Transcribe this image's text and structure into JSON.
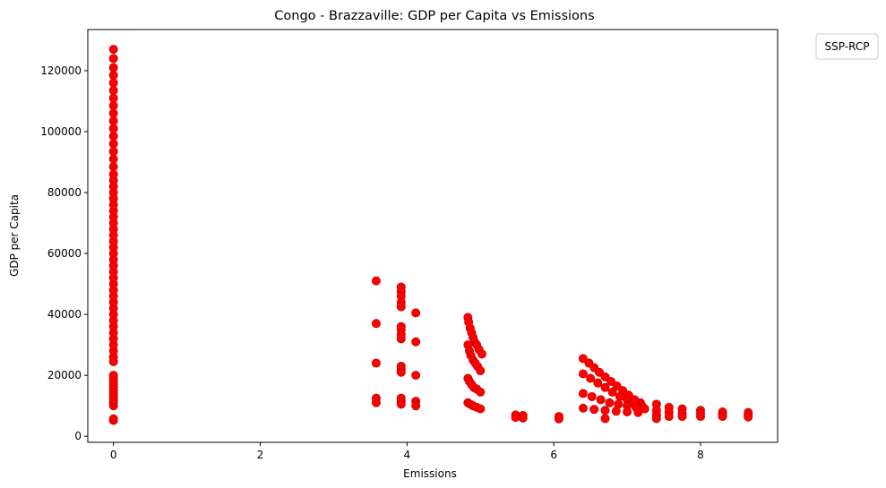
{
  "chart_data": {
    "type": "scatter",
    "title": "Congo - Brazzaville: GDP per Capita vs Emissions",
    "xlabel": "Emissions",
    "ylabel": "GDP per Capita",
    "xlim": [
      -0.35,
      9.05
    ],
    "ylim": [
      -2000,
      133500
    ],
    "xticks": [
      0,
      2,
      4,
      6,
      8
    ],
    "yticks": [
      0,
      20000,
      40000,
      60000,
      80000,
      100000,
      120000
    ],
    "grid": false,
    "legend": {
      "title": "SSP-RCP",
      "placement": "outside-top-right"
    },
    "marker_color": "#ff0000",
    "marker_edge_color": "#cc0000",
    "series": [
      {
        "values": [
          {
            "x": 0,
            "y": 5200
          },
          {
            "x": 0,
            "y": 5700
          },
          {
            "x": 0,
            "y": 10000
          },
          {
            "x": 0,
            "y": 11000
          },
          {
            "x": 0,
            "y": 12000
          },
          {
            "x": 0,
            "y": 13000
          },
          {
            "x": 0,
            "y": 14000
          },
          {
            "x": 0,
            "y": 15000
          },
          {
            "x": 0,
            "y": 16000
          },
          {
            "x": 0,
            "y": 17000
          },
          {
            "x": 0,
            "y": 18000
          },
          {
            "x": 0,
            "y": 19000
          },
          {
            "x": 0,
            "y": 20000
          },
          {
            "x": 0,
            "y": 24500
          },
          {
            "x": 0,
            "y": 26000
          },
          {
            "x": 0,
            "y": 28000
          },
          {
            "x": 0,
            "y": 30000
          },
          {
            "x": 0,
            "y": 32000
          },
          {
            "x": 0,
            "y": 34000
          },
          {
            "x": 0,
            "y": 36000
          },
          {
            "x": 0,
            "y": 38000
          },
          {
            "x": 0,
            "y": 40000
          },
          {
            "x": 0,
            "y": 42000
          },
          {
            "x": 0,
            "y": 44000
          },
          {
            "x": 0,
            "y": 46000
          },
          {
            "x": 0,
            "y": 48000
          },
          {
            "x": 0,
            "y": 50000
          },
          {
            "x": 0,
            "y": 52000
          },
          {
            "x": 0,
            "y": 54000
          },
          {
            "x": 0,
            "y": 56000
          },
          {
            "x": 0,
            "y": 58000
          },
          {
            "x": 0,
            "y": 60000
          },
          {
            "x": 0,
            "y": 62000
          },
          {
            "x": 0,
            "y": 64000
          },
          {
            "x": 0,
            "y": 66000
          },
          {
            "x": 0,
            "y": 68000
          },
          {
            "x": 0,
            "y": 70000
          },
          {
            "x": 0,
            "y": 72000
          },
          {
            "x": 0,
            "y": 74000
          },
          {
            "x": 0,
            "y": 76000
          },
          {
            "x": 0,
            "y": 78000
          },
          {
            "x": 0,
            "y": 80000
          },
          {
            "x": 0,
            "y": 82000
          },
          {
            "x": 0,
            "y": 84000
          },
          {
            "x": 0,
            "y": 86000
          },
          {
            "x": 0,
            "y": 88500
          },
          {
            "x": 0,
            "y": 91000
          },
          {
            "x": 0,
            "y": 93500
          },
          {
            "x": 0,
            "y": 96000
          },
          {
            "x": 0,
            "y": 98500
          },
          {
            "x": 0,
            "y": 101000
          },
          {
            "x": 0,
            "y": 103500
          },
          {
            "x": 0,
            "y": 106000
          },
          {
            "x": 0,
            "y": 108500
          },
          {
            "x": 0,
            "y": 111000
          },
          {
            "x": 0,
            "y": 113500
          },
          {
            "x": 0,
            "y": 116000
          },
          {
            "x": 0,
            "y": 118500
          },
          {
            "x": 0,
            "y": 121000
          },
          {
            "x": 0,
            "y": 124000
          },
          {
            "x": 0,
            "y": 127000
          },
          {
            "x": 3.58,
            "y": 51000
          },
          {
            "x": 3.58,
            "y": 37000
          },
          {
            "x": 3.58,
            "y": 24000
          },
          {
            "x": 3.58,
            "y": 12500
          },
          {
            "x": 3.58,
            "y": 11000
          },
          {
            "x": 3.92,
            "y": 49000
          },
          {
            "x": 3.92,
            "y": 47500
          },
          {
            "x": 3.92,
            "y": 46000
          },
          {
            "x": 3.92,
            "y": 44000
          },
          {
            "x": 3.92,
            "y": 42500
          },
          {
            "x": 3.92,
            "y": 36000
          },
          {
            "x": 3.92,
            "y": 35000
          },
          {
            "x": 3.92,
            "y": 33500
          },
          {
            "x": 3.92,
            "y": 32000
          },
          {
            "x": 3.92,
            "y": 23000
          },
          {
            "x": 3.92,
            "y": 22000
          },
          {
            "x": 3.92,
            "y": 21000
          },
          {
            "x": 3.92,
            "y": 12500
          },
          {
            "x": 3.92,
            "y": 11500
          },
          {
            "x": 3.92,
            "y": 10500
          },
          {
            "x": 4.12,
            "y": 40500
          },
          {
            "x": 4.12,
            "y": 31000
          },
          {
            "x": 4.12,
            "y": 20000
          },
          {
            "x": 4.12,
            "y": 11500
          },
          {
            "x": 4.12,
            "y": 10000
          },
          {
            "x": 4.83,
            "y": 39000
          },
          {
            "x": 4.84,
            "y": 37500
          },
          {
            "x": 4.86,
            "y": 35500
          },
          {
            "x": 4.88,
            "y": 34000
          },
          {
            "x": 4.9,
            "y": 32500
          },
          {
            "x": 4.92,
            "y": 31000
          },
          {
            "x": 4.95,
            "y": 30000
          },
          {
            "x": 4.98,
            "y": 28500
          },
          {
            "x": 5.02,
            "y": 27000
          },
          {
            "x": 4.83,
            "y": 30000
          },
          {
            "x": 4.85,
            "y": 28000
          },
          {
            "x": 4.87,
            "y": 26500
          },
          {
            "x": 4.9,
            "y": 25000
          },
          {
            "x": 4.93,
            "y": 24000
          },
          {
            "x": 4.96,
            "y": 23000
          },
          {
            "x": 5.0,
            "y": 21500
          },
          {
            "x": 4.83,
            "y": 19000
          },
          {
            "x": 4.85,
            "y": 18000
          },
          {
            "x": 4.88,
            "y": 17000
          },
          {
            "x": 4.91,
            "y": 16000
          },
          {
            "x": 4.95,
            "y": 15500
          },
          {
            "x": 5.0,
            "y": 14500
          },
          {
            "x": 4.83,
            "y": 11000
          },
          {
            "x": 4.86,
            "y": 10500
          },
          {
            "x": 4.9,
            "y": 10000
          },
          {
            "x": 4.95,
            "y": 9500
          },
          {
            "x": 5.0,
            "y": 9000
          },
          {
            "x": 5.48,
            "y": 7000
          },
          {
            "x": 5.48,
            "y": 6200
          },
          {
            "x": 5.58,
            "y": 6800
          },
          {
            "x": 5.58,
            "y": 6000
          },
          {
            "x": 6.07,
            "y": 6500
          },
          {
            "x": 6.07,
            "y": 5700
          },
          {
            "x": 6.4,
            "y": 25500
          },
          {
            "x": 6.48,
            "y": 24000
          },
          {
            "x": 6.55,
            "y": 22500
          },
          {
            "x": 6.62,
            "y": 21000
          },
          {
            "x": 6.7,
            "y": 19500
          },
          {
            "x": 6.78,
            "y": 18000
          },
          {
            "x": 6.86,
            "y": 16500
          },
          {
            "x": 6.94,
            "y": 15000
          },
          {
            "x": 7.02,
            "y": 13500
          },
          {
            "x": 7.1,
            "y": 12000
          },
          {
            "x": 7.18,
            "y": 11000
          },
          {
            "x": 6.4,
            "y": 20500
          },
          {
            "x": 6.5,
            "y": 19000
          },
          {
            "x": 6.6,
            "y": 17500
          },
          {
            "x": 6.7,
            "y": 16000
          },
          {
            "x": 6.8,
            "y": 14500
          },
          {
            "x": 6.9,
            "y": 13000
          },
          {
            "x": 7.0,
            "y": 12000
          },
          {
            "x": 7.1,
            "y": 11000
          },
          {
            "x": 7.2,
            "y": 10000
          },
          {
            "x": 6.4,
            "y": 14000
          },
          {
            "x": 6.52,
            "y": 13000
          },
          {
            "x": 6.64,
            "y": 12000
          },
          {
            "x": 6.76,
            "y": 11000
          },
          {
            "x": 6.88,
            "y": 10500
          },
          {
            "x": 7.0,
            "y": 10000
          },
          {
            "x": 7.12,
            "y": 9500
          },
          {
            "x": 7.24,
            "y": 9000
          },
          {
            "x": 6.4,
            "y": 9200
          },
          {
            "x": 6.55,
            "y": 8800
          },
          {
            "x": 6.7,
            "y": 8500
          },
          {
            "x": 6.85,
            "y": 8200
          },
          {
            "x": 7.0,
            "y": 8000
          },
          {
            "x": 7.15,
            "y": 7800
          },
          {
            "x": 6.7,
            "y": 5800
          },
          {
            "x": 7.4,
            "y": 10500
          },
          {
            "x": 7.4,
            "y": 8500
          },
          {
            "x": 7.4,
            "y": 7000
          },
          {
            "x": 7.4,
            "y": 5800
          },
          {
            "x": 7.57,
            "y": 9500
          },
          {
            "x": 7.57,
            "y": 8000
          },
          {
            "x": 7.57,
            "y": 6500
          },
          {
            "x": 7.75,
            "y": 9000
          },
          {
            "x": 7.75,
            "y": 7500
          },
          {
            "x": 7.75,
            "y": 6500
          },
          {
            "x": 8.0,
            "y": 8500
          },
          {
            "x": 8.0,
            "y": 7500
          },
          {
            "x": 8.0,
            "y": 6500
          },
          {
            "x": 8.3,
            "y": 8000
          },
          {
            "x": 8.3,
            "y": 7000
          },
          {
            "x": 8.3,
            "y": 6500
          },
          {
            "x": 8.65,
            "y": 7800
          },
          {
            "x": 8.65,
            "y": 7000
          },
          {
            "x": 8.65,
            "y": 6300
          }
        ]
      }
    ]
  }
}
